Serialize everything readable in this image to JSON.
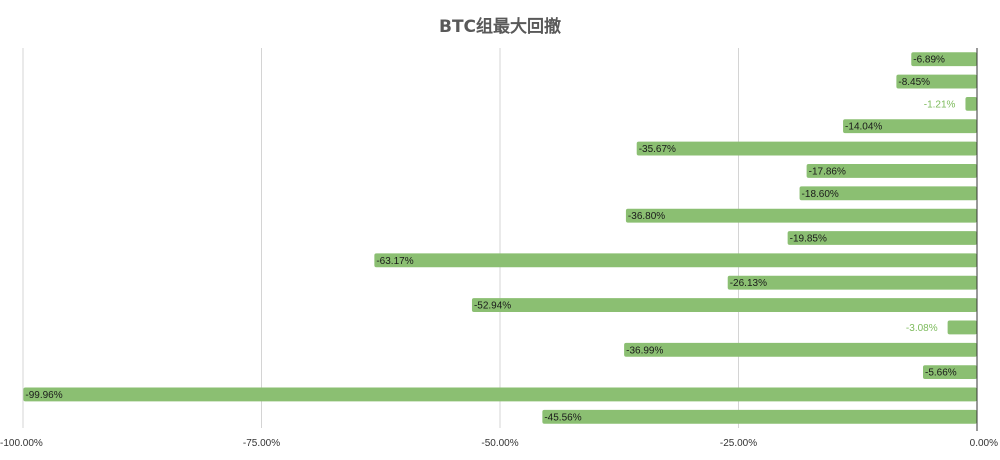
{
  "chart_data": {
    "type": "bar",
    "orientation": "horizontal",
    "title": "BTC组最大回撤",
    "xlabel": "",
    "ylabel": "",
    "xlim": [
      -100,
      0
    ],
    "x_ticks": [
      -100,
      -75,
      -50,
      -25,
      0
    ],
    "x_tick_labels": [
      "-100.00%",
      "-75.00%",
      "-50.00%",
      "-25.00%",
      "0.00%"
    ],
    "grid": "vertical",
    "legend": "none",
    "values": [
      -6.89,
      -8.45,
      -1.21,
      -14.04,
      -35.67,
      -17.86,
      -18.6,
      -36.8,
      -19.85,
      -63.17,
      -26.13,
      -52.94,
      -3.08,
      -36.99,
      -5.66,
      -99.96,
      -45.56
    ],
    "labels": [
      "-6.89%",
      "-8.45%",
      "-1.21%",
      "-14.04%",
      "-35.67%",
      "-17.86%",
      "-18.60%",
      "-36.80%",
      "-19.85%",
      "-63.17%",
      "-26.13%",
      "-52.94%",
      "-3.08%",
      "-36.99%",
      "-5.66%",
      "-99.96%",
      "-45.56%"
    ],
    "colors": {
      "bar": "#8bbf72",
      "grid": "#d4d4d4",
      "axis": "#333333",
      "label_inside": "#1a1a1a",
      "label_outside": "#7dbb5c",
      "title": "#595959"
    }
  }
}
